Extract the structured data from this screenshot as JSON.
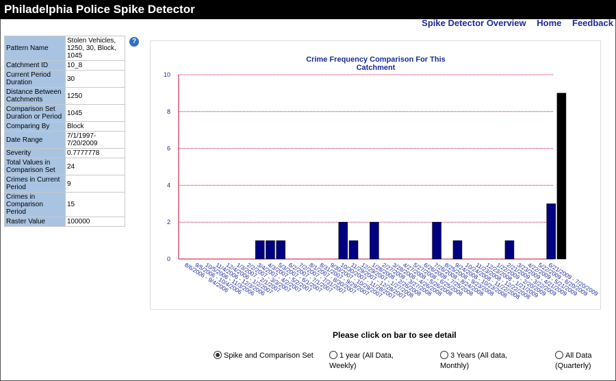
{
  "app": {
    "title": "Philadelphia Police Spike Detector"
  },
  "nav": {
    "overview": "Spike Detector Overview",
    "home": "Home",
    "feedback": "Feedback"
  },
  "info_rows": [
    {
      "label": "Pattern Name",
      "value": "Stolen Vehicles, 1250, 30, Block, 1045"
    },
    {
      "label": "Catchment ID",
      "value": "10_8"
    },
    {
      "label": "Current Period Duration",
      "value": "30"
    },
    {
      "label": "Distance Between Catchments",
      "value": "1250"
    },
    {
      "label": "Comparison Set Duration or Period",
      "value": "1045"
    },
    {
      "label": "Comparing By",
      "value": "Block"
    },
    {
      "label": "Date Range",
      "value": "7/1/1997-7/20/2009"
    },
    {
      "label": "Severity",
      "value": "0.7777778"
    },
    {
      "label": "Total Values in Comparison Set",
      "value": "24"
    },
    {
      "label": "Crimes in Current Period",
      "value": "9"
    },
    {
      "label": "Crimes in Comparison Period",
      "value": "15"
    },
    {
      "label": "Raster Value",
      "value": "100000"
    }
  ],
  "help_icon": "help-icon",
  "chart_data": {
    "type": "bar",
    "title": "Crime Frequency Comparison For This Catchment",
    "xlabel": "",
    "ylabel": "",
    "ylim": [
      0,
      10
    ],
    "yticks": [
      0,
      2,
      4,
      6,
      8,
      10
    ],
    "grid": true,
    "colors": {
      "comparison": "#000080",
      "current": "#000000",
      "grid": "#cc0033",
      "axis": "#cc0033",
      "text": "#1a2a9a"
    },
    "categories": [
      "8/6/2006 - 9/4/2006",
      "9/5/2006 - 10/4/2006",
      "10/5/2006 - 11/3/2006",
      "11/4/2006 - 12/3/2006",
      "12/4/2006 - 1/2/2007",
      "1/3/2007 - 2/1/2007",
      "2/2/2007 - 3/3/2007",
      "3/4/2007 - 4/2/2007",
      "4/3/2007 - 5/2/2007",
      "5/3/2007 - 6/1/2007",
      "6/2/2007 - 7/1/2007",
      "7/2/2007 - 7/31/2007",
      "8/1/2007 - 8/30/2007",
      "8/31/2007 - 9/29/2007",
      "9/30/2007 - 10/29/2007",
      "10/30/2007 - 11/28/2007",
      "11/29/2007 - 12/28/2007",
      "12/29/2007 - 1/27/2008",
      "1/28/2008 - 2/26/2008",
      "2/27/2008 - 3/27/2008",
      "3/28/2008 - 4/26/2008",
      "4/27/2008 - 5/26/2008",
      "5/27/2008 - 6/25/2008",
      "6/26/2008 - 7/25/2008",
      "7/26/2008 - 8/24/2008",
      "8/25/2008 - 9/23/2008",
      "9/24/2008 - 10/23/2008",
      "10/24/2008 - 11/22/2008",
      "11/23/2008 - 12/22/2008",
      "12/23/2008 - 1/21/2009",
      "1/22/2009 - 2/20/2009",
      "2/21/2009 - 3/22/2009",
      "3/23/2009 - 4/21/2009",
      "4/22/2009 - 5/21/2009",
      "5/22/2009 - 6/20/2009",
      "6/21/2009 - 7/20/2009"
    ],
    "values": [
      0,
      0,
      0,
      0,
      0,
      0,
      1,
      1,
      1,
      0,
      0,
      0,
      0,
      0,
      2,
      1,
      0,
      2,
      0,
      0,
      0,
      0,
      0,
      2,
      0,
      1,
      0,
      0,
      0,
      0,
      1,
      0,
      0,
      0,
      3,
      9
    ],
    "current_index": 35
  },
  "instructions": {
    "click_bar": "Please click on bar to see detail"
  },
  "radio_options": [
    {
      "label": "Spike and Comparison Set",
      "selected": true
    },
    {
      "label": "1 year (All Data, Weekly)",
      "selected": false
    },
    {
      "label": "3 Years (All data, Monthly)",
      "selected": false
    },
    {
      "label": "All Data (Quarterly)",
      "selected": false
    }
  ]
}
